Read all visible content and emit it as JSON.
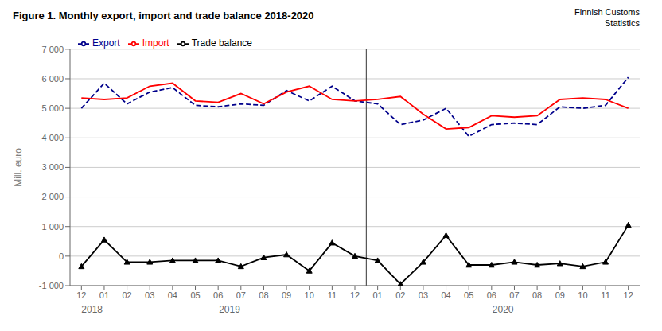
{
  "chart_data": {
    "type": "line",
    "title": "Figure  1. Monthly  export, import and trade balance 2018-2020",
    "annotations": [
      "2018",
      "2019",
      "2020",
      "Finnish Customs",
      "Statistics"
    ],
    "y_label": "Mill. euro",
    "categories": [
      "12",
      "01",
      "02",
      "03",
      "04",
      "05",
      "06",
      "07",
      "08",
      "09",
      "10",
      "11",
      "12",
      "01",
      "02",
      "03",
      "04",
      "05",
      "06",
      "07",
      "08",
      "09",
      "10",
      "11",
      "12"
    ],
    "series": [
      {
        "name": "Export",
        "color": "#00008B",
        "line_style": "dashed",
        "marker": "none",
        "values": [
          5000,
          5850,
          5150,
          5550,
          5700,
          5100,
          5050,
          5150,
          5100,
          5600,
          5250,
          5750,
          5250,
          5150,
          4450,
          4600,
          5000,
          4050,
          4450,
          4500,
          4450,
          5050,
          5000,
          5100,
          6050
        ]
      },
      {
        "name": "Import",
        "color": "#FF0000",
        "line_style": "solid",
        "marker": "none",
        "values": [
          5350,
          5300,
          5350,
          5750,
          5850,
          5250,
          5200,
          5500,
          5150,
          5550,
          5750,
          5300,
          5250,
          5300,
          5400,
          4800,
          4300,
          4350,
          4750,
          4700,
          4750,
          5300,
          5350,
          5300,
          5000
        ]
      },
      {
        "name": "Trade balance",
        "color": "#000000",
        "line_style": "solid",
        "marker": "triangle",
        "values": [
          -350,
          550,
          -200,
          -200,
          -150,
          -150,
          -150,
          -350,
          -50,
          50,
          -500,
          450,
          0,
          -150,
          -950,
          -200,
          700,
          -300,
          -300,
          -200,
          -300,
          -250,
          -350,
          -200,
          1050
        ]
      }
    ],
    "ylim": [
      -1000,
      7000
    ],
    "yticks": [
      {
        "value": -1000,
        "label": "-1 000"
      },
      0,
      {
        "value": 1000,
        "label": "1 000"
      },
      {
        "value": 2000,
        "label": "2 000"
      },
      {
        "value": 3000,
        "label": "3 000"
      },
      {
        "value": 4000,
        "label": "4 000"
      },
      {
        "value": 5000,
        "label": "5 000"
      },
      {
        "value": 6000,
        "label": "6 000"
      },
      {
        "value": 7000,
        "label": "7 000"
      }
    ],
    "grid": true,
    "legend": "upper left"
  }
}
